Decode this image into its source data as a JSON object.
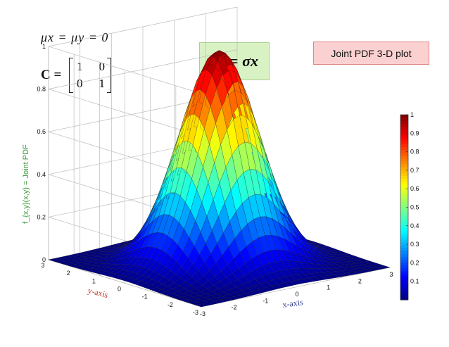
{
  "equations": {
    "mean": "μx = μy = 0",
    "cov_label": "C =",
    "matrix": [
      [
        "1",
        "0"
      ],
      [
        "0",
        "1"
      ]
    ],
    "sigma": "σy = σx"
  },
  "title_box": "Joint PDF 3-D plot",
  "colors": {
    "sigma_box_bg": "#d9f2c4",
    "title_box_bg": "#fbd0d0",
    "zlabel": "#3a9a3a",
    "ylabel": "#c0392b",
    "xlabel": "#2e3a8c"
  },
  "chart_data": {
    "type": "surface",
    "title": "Joint PDF 3-D plot",
    "function": "bivariate normal, zero mean, identity covariance, normalized to peak 1",
    "xlabel": "x-axis",
    "ylabel": "y-axis",
    "zlabel": "f_{x,y}(x,y) = Joint PDF",
    "xlim": [
      -3,
      3
    ],
    "ylim": [
      -3,
      3
    ],
    "zlim": [
      0,
      1
    ],
    "xticks": [
      "-3",
      "-2",
      "-1",
      "0",
      "1",
      "2",
      "3"
    ],
    "yticks": [
      "-3",
      "-2",
      "-1",
      "0",
      "1",
      "2",
      "3"
    ],
    "zticks": [
      "0",
      "0.2",
      "0.4",
      "0.6",
      "0.8",
      "1"
    ],
    "peak": {
      "x": 0,
      "y": 0,
      "z": 1
    },
    "colorbar": {
      "ticks": [
        "0.1",
        "0.2",
        "0.3",
        "0.4",
        "0.5",
        "0.6",
        "0.7",
        "0.8",
        "0.9",
        "1"
      ],
      "range": [
        0,
        1
      ],
      "colormap": "jet"
    },
    "grid": true
  }
}
